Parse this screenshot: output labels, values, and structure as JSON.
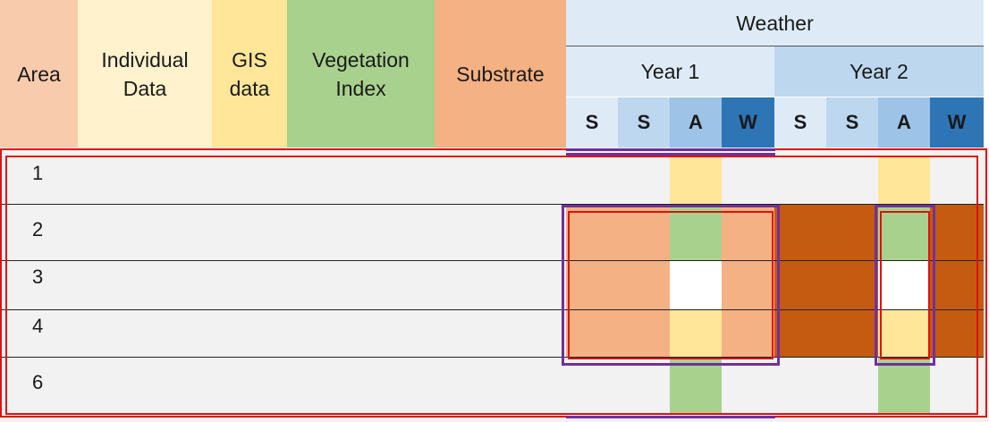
{
  "columns": {
    "area": "Area",
    "individual_data": [
      "Individual",
      "Data"
    ],
    "gis_data": [
      "GIS",
      "data"
    ],
    "vegetation_index": [
      "Vegetation",
      "Index"
    ],
    "substrate": "Substrate"
  },
  "weather": {
    "title": "Weather",
    "years": [
      "Year 1",
      "Year 2"
    ],
    "seasons": [
      "S",
      "S",
      "A",
      "W",
      "S",
      "S",
      "A",
      "W"
    ]
  },
  "rows": [
    {
      "area": "1"
    },
    {
      "area": "2"
    },
    {
      "area": "3"
    },
    {
      "area": "4"
    },
    {
      "area": "6"
    }
  ],
  "colors": {
    "area": "#f8cbad",
    "individual_data": "#fff2cc",
    "gis_data": "#ffe699",
    "vegetation_index": "#a9d18e",
    "substrate": "#f4b183",
    "weather_light": "#deebf7",
    "weather_mid": "#bdd7ee",
    "weather_a": "#9dc3e6",
    "weather_w": "#2e75b6",
    "row_bg": "#f2f2f2",
    "yellow": "#ffe699",
    "green": "#a9d18e",
    "salmon": "#f4b183",
    "dark_orange": "#c55a11",
    "white": "#ffffff",
    "red_outline": "#e01010",
    "purple_outline": "#7030a0"
  }
}
